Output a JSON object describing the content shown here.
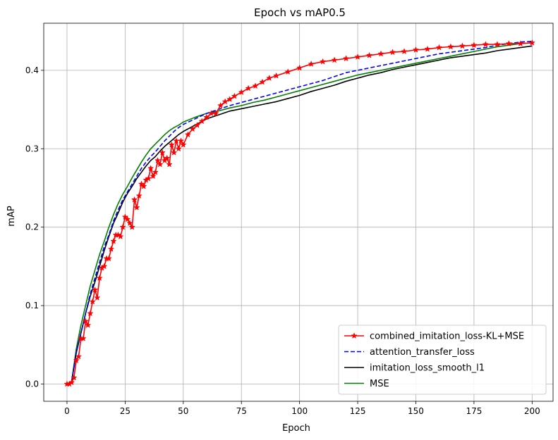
{
  "chart_data": {
    "type": "line",
    "title": "Epoch vs mAP0.5",
    "xlabel": "Epoch",
    "ylabel": "mAP",
    "xlim": [
      -10,
      209
    ],
    "ylim": [
      -0.022,
      0.46
    ],
    "xticks": [
      0,
      25,
      50,
      75,
      100,
      125,
      150,
      175,
      200
    ],
    "yticks": [
      0.0,
      0.1,
      0.2,
      0.3,
      0.4
    ],
    "ytick_labels": [
      "0.0",
      "0.1",
      "0.2",
      "0.3",
      "0.4"
    ],
    "grid": true,
    "legend_position": "lower-right",
    "series": [
      {
        "name": "combined_imitation_loss-KL+MSE",
        "color": "#ff0000",
        "style": "solid",
        "marker": "star",
        "points": [
          [
            0,
            0.0
          ],
          [
            1,
            0.0
          ],
          [
            2,
            0.002
          ],
          [
            3,
            0.008
          ],
          [
            4,
            0.03
          ],
          [
            5,
            0.035
          ],
          [
            6,
            0.058
          ],
          [
            7,
            0.058
          ],
          [
            8,
            0.08
          ],
          [
            9,
            0.075
          ],
          [
            10,
            0.09
          ],
          [
            11,
            0.105
          ],
          [
            12,
            0.12
          ],
          [
            13,
            0.11
          ],
          [
            14,
            0.135
          ],
          [
            15,
            0.148
          ],
          [
            16,
            0.15
          ],
          [
            17,
            0.16
          ],
          [
            18,
            0.16
          ],
          [
            19,
            0.172
          ],
          [
            20,
            0.182
          ],
          [
            21,
            0.19
          ],
          [
            22,
            0.19
          ],
          [
            23,
            0.188
          ],
          [
            24,
            0.2
          ],
          [
            25,
            0.213
          ],
          [
            26,
            0.21
          ],
          [
            27,
            0.205
          ],
          [
            28,
            0.2
          ],
          [
            29,
            0.235
          ],
          [
            30,
            0.225
          ],
          [
            31,
            0.24
          ],
          [
            32,
            0.255
          ],
          [
            33,
            0.252
          ],
          [
            34,
            0.26
          ],
          [
            35,
            0.262
          ],
          [
            36,
            0.275
          ],
          [
            37,
            0.265
          ],
          [
            38,
            0.27
          ],
          [
            39,
            0.285
          ],
          [
            40,
            0.28
          ],
          [
            41,
            0.295
          ],
          [
            42,
            0.285
          ],
          [
            43,
            0.288
          ],
          [
            44,
            0.28
          ],
          [
            45,
            0.305
          ],
          [
            46,
            0.295
          ],
          [
            47,
            0.31
          ],
          [
            48,
            0.3
          ],
          [
            49,
            0.31
          ],
          [
            50,
            0.305
          ],
          [
            52,
            0.318
          ],
          [
            54,
            0.325
          ],
          [
            56,
            0.33
          ],
          [
            58,
            0.335
          ],
          [
            60,
            0.34
          ],
          [
            62,
            0.345
          ],
          [
            64,
            0.345
          ],
          [
            66,
            0.355
          ],
          [
            68,
            0.36
          ],
          [
            70,
            0.363
          ],
          [
            72,
            0.367
          ],
          [
            75,
            0.372
          ],
          [
            78,
            0.377
          ],
          [
            81,
            0.38
          ],
          [
            84,
            0.385
          ],
          [
            87,
            0.39
          ],
          [
            90,
            0.393
          ],
          [
            95,
            0.398
          ],
          [
            100,
            0.403
          ],
          [
            105,
            0.408
          ],
          [
            110,
            0.411
          ],
          [
            115,
            0.413
          ],
          [
            120,
            0.415
          ],
          [
            125,
            0.417
          ],
          [
            130,
            0.419
          ],
          [
            135,
            0.421
          ],
          [
            140,
            0.423
          ],
          [
            145,
            0.424
          ],
          [
            150,
            0.426
          ],
          [
            155,
            0.427
          ],
          [
            160,
            0.429
          ],
          [
            165,
            0.43
          ],
          [
            170,
            0.431
          ],
          [
            175,
            0.432
          ],
          [
            180,
            0.433
          ],
          [
            185,
            0.433
          ],
          [
            190,
            0.434
          ],
          [
            195,
            0.434
          ],
          [
            200,
            0.435
          ]
        ]
      },
      {
        "name": "attention_transfer_loss",
        "color": "#0000ff",
        "style": "dashed",
        "marker": "none",
        "points": [
          [
            0,
            0.0
          ],
          [
            2,
            0.003
          ],
          [
            4,
            0.04
          ],
          [
            6,
            0.065
          ],
          [
            8,
            0.09
          ],
          [
            10,
            0.115
          ],
          [
            12,
            0.135
          ],
          [
            14,
            0.155
          ],
          [
            16,
            0.175
          ],
          [
            18,
            0.19
          ],
          [
            20,
            0.208
          ],
          [
            22,
            0.222
          ],
          [
            24,
            0.235
          ],
          [
            26,
            0.245
          ],
          [
            28,
            0.255
          ],
          [
            30,
            0.265
          ],
          [
            32,
            0.275
          ],
          [
            34,
            0.283
          ],
          [
            36,
            0.29
          ],
          [
            38,
            0.296
          ],
          [
            40,
            0.303
          ],
          [
            42,
            0.31
          ],
          [
            44,
            0.316
          ],
          [
            46,
            0.322
          ],
          [
            48,
            0.327
          ],
          [
            50,
            0.331
          ],
          [
            55,
            0.338
          ],
          [
            60,
            0.345
          ],
          [
            65,
            0.35
          ],
          [
            70,
            0.355
          ],
          [
            75,
            0.359
          ],
          [
            80,
            0.363
          ],
          [
            85,
            0.367
          ],
          [
            90,
            0.371
          ],
          [
            95,
            0.375
          ],
          [
            100,
            0.379
          ],
          [
            105,
            0.383
          ],
          [
            110,
            0.387
          ],
          [
            115,
            0.392
          ],
          [
            120,
            0.397
          ],
          [
            125,
            0.4
          ],
          [
            130,
            0.403
          ],
          [
            135,
            0.406
          ],
          [
            140,
            0.409
          ],
          [
            145,
            0.412
          ],
          [
            150,
            0.415
          ],
          [
            155,
            0.418
          ],
          [
            160,
            0.421
          ],
          [
            165,
            0.423
          ],
          [
            170,
            0.425
          ],
          [
            175,
            0.427
          ],
          [
            180,
            0.429
          ],
          [
            185,
            0.432
          ],
          [
            190,
            0.434
          ],
          [
            195,
            0.436
          ],
          [
            200,
            0.437
          ]
        ]
      },
      {
        "name": "imitation_loss_smooth_l1",
        "color": "#000000",
        "style": "solid",
        "marker": "none",
        "points": [
          [
            0,
            0.0
          ],
          [
            2,
            0.003
          ],
          [
            4,
            0.04
          ],
          [
            6,
            0.065
          ],
          [
            8,
            0.09
          ],
          [
            10,
            0.112
          ],
          [
            12,
            0.13
          ],
          [
            14,
            0.15
          ],
          [
            16,
            0.17
          ],
          [
            18,
            0.188
          ],
          [
            20,
            0.205
          ],
          [
            22,
            0.218
          ],
          [
            24,
            0.232
          ],
          [
            26,
            0.243
          ],
          [
            28,
            0.252
          ],
          [
            30,
            0.262
          ],
          [
            32,
            0.27
          ],
          [
            34,
            0.278
          ],
          [
            36,
            0.285
          ],
          [
            38,
            0.29
          ],
          [
            40,
            0.297
          ],
          [
            42,
            0.303
          ],
          [
            44,
            0.308
          ],
          [
            46,
            0.313
          ],
          [
            48,
            0.318
          ],
          [
            50,
            0.322
          ],
          [
            55,
            0.33
          ],
          [
            60,
            0.338
          ],
          [
            65,
            0.343
          ],
          [
            70,
            0.348
          ],
          [
            75,
            0.351
          ],
          [
            80,
            0.354
          ],
          [
            85,
            0.357
          ],
          [
            90,
            0.36
          ],
          [
            95,
            0.364
          ],
          [
            100,
            0.368
          ],
          [
            105,
            0.373
          ],
          [
            110,
            0.377
          ],
          [
            115,
            0.381
          ],
          [
            120,
            0.386
          ],
          [
            125,
            0.39
          ],
          [
            130,
            0.394
          ],
          [
            135,
            0.397
          ],
          [
            140,
            0.401
          ],
          [
            145,
            0.404
          ],
          [
            150,
            0.407
          ],
          [
            155,
            0.41
          ],
          [
            160,
            0.413
          ],
          [
            165,
            0.416
          ],
          [
            170,
            0.418
          ],
          [
            175,
            0.42
          ],
          [
            180,
            0.422
          ],
          [
            185,
            0.425
          ],
          [
            190,
            0.427
          ],
          [
            195,
            0.429
          ],
          [
            200,
            0.431
          ]
        ]
      },
      {
        "name": "MSE",
        "color": "#008000",
        "style": "solid",
        "marker": "none",
        "points": [
          [
            0,
            0.0
          ],
          [
            2,
            0.003
          ],
          [
            4,
            0.045
          ],
          [
            6,
            0.075
          ],
          [
            8,
            0.1
          ],
          [
            10,
            0.125
          ],
          [
            12,
            0.145
          ],
          [
            14,
            0.165
          ],
          [
            16,
            0.182
          ],
          [
            18,
            0.2
          ],
          [
            20,
            0.216
          ],
          [
            22,
            0.23
          ],
          [
            24,
            0.242
          ],
          [
            26,
            0.252
          ],
          [
            28,
            0.263
          ],
          [
            30,
            0.273
          ],
          [
            32,
            0.283
          ],
          [
            34,
            0.292
          ],
          [
            36,
            0.3
          ],
          [
            38,
            0.306
          ],
          [
            40,
            0.312
          ],
          [
            42,
            0.318
          ],
          [
            44,
            0.323
          ],
          [
            46,
            0.327
          ],
          [
            48,
            0.33
          ],
          [
            50,
            0.334
          ],
          [
            55,
            0.34
          ],
          [
            60,
            0.345
          ],
          [
            65,
            0.348
          ],
          [
            70,
            0.352
          ],
          [
            75,
            0.355
          ],
          [
            80,
            0.359
          ],
          [
            85,
            0.362
          ],
          [
            90,
            0.366
          ],
          [
            95,
            0.37
          ],
          [
            100,
            0.374
          ],
          [
            105,
            0.378
          ],
          [
            110,
            0.382
          ],
          [
            115,
            0.386
          ],
          [
            120,
            0.39
          ],
          [
            125,
            0.394
          ],
          [
            130,
            0.397
          ],
          [
            135,
            0.4
          ],
          [
            140,
            0.403
          ],
          [
            145,
            0.406
          ],
          [
            150,
            0.409
          ],
          [
            155,
            0.412
          ],
          [
            160,
            0.415
          ],
          [
            165,
            0.418
          ],
          [
            170,
            0.421
          ],
          [
            175,
            0.424
          ],
          [
            180,
            0.427
          ],
          [
            185,
            0.43
          ],
          [
            190,
            0.432
          ],
          [
            195,
            0.434
          ],
          [
            200,
            0.435
          ]
        ]
      }
    ]
  }
}
